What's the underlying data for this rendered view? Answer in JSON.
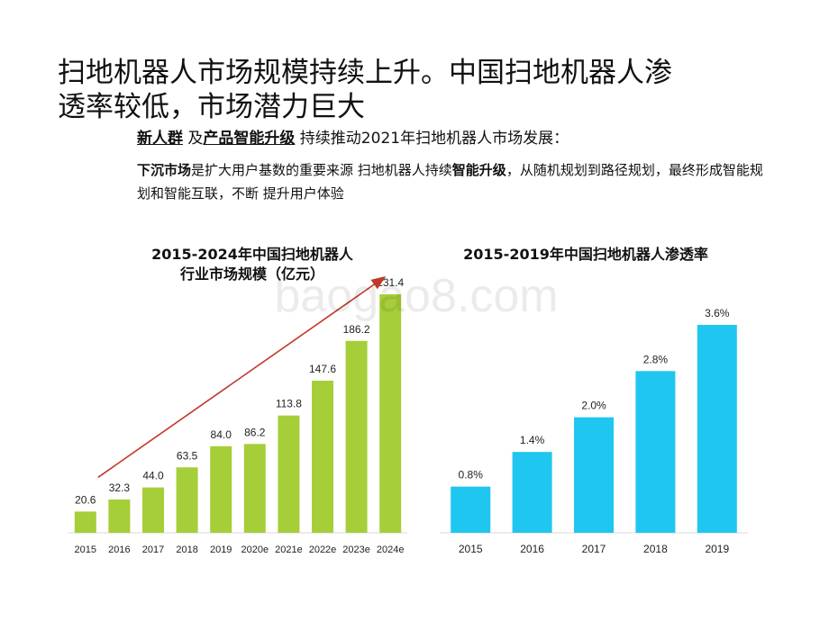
{
  "header": {
    "title": "扫地机器人市场规模持续上升。中国扫地机器人渗透率较低，市场潜力巨大",
    "sub_a": "新人群",
    "sub_b": " 及",
    "sub_c": "产品智能升级",
    "sub_d": " 持续推动2021年扫地机器人市场发展：",
    "body_a": "下沉市场",
    "body_b": "是扩大用户基数的重要来源 扫地机器人持续",
    "body_c": "智能升级",
    "body_d": "，从随机规划到路径规划，最终形成智能规划和智能互联，不断 提升用户体验"
  },
  "watermark": "baogao8.com",
  "colors": {
    "green": "#A6CE39",
    "blue": "#1FC6F0",
    "arrow": "#C0392B"
  },
  "chart_data": [
    {
      "type": "bar",
      "title": "2015-2024年中国扫地机器人\n行业市场规模（亿元）",
      "categories": [
        "2015",
        "2016",
        "2017",
        "2018",
        "2019",
        "2020e",
        "2021e",
        "2022e",
        "2023e",
        "2024e"
      ],
      "values": [
        20.6,
        32.3,
        44.0,
        63.5,
        84.0,
        86.2,
        113.8,
        147.6,
        186.2,
        231.4
      ],
      "labels": [
        "20.6",
        "32.3",
        "44.0",
        "63.5",
        "84.0",
        "86.2",
        "113.8",
        "147.6",
        "186.2",
        "231.4"
      ],
      "ylim": [
        0,
        231.4
      ],
      "color": "#A6CE39",
      "trend_arrow": true
    },
    {
      "type": "bar",
      "title": "2015-2019年中国扫地机器人渗透率",
      "categories": [
        "2015",
        "2016",
        "2017",
        "2018",
        "2019"
      ],
      "values": [
        0.8,
        1.4,
        2.0,
        2.8,
        3.6
      ],
      "labels": [
        "0.8%",
        "1.4%",
        "2.0%",
        "2.8%",
        "3.6%"
      ],
      "ylim": [
        0,
        3.6
      ],
      "color": "#1FC6F0"
    }
  ]
}
